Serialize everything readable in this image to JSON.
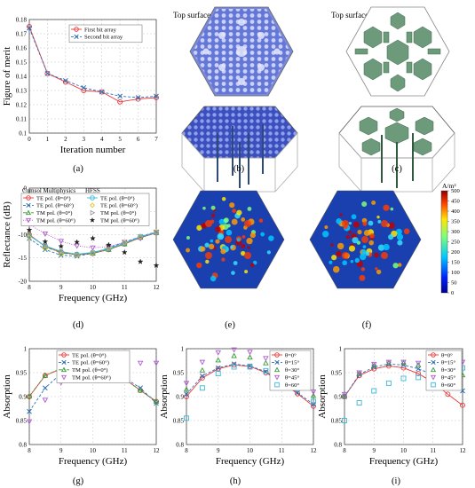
{
  "panel_labels": [
    "(a)",
    "(b)",
    "(c)",
    "(d)",
    "(e)",
    "(f)",
    "(g)",
    "(h)",
    "(i)"
  ],
  "surface_label": "Top surface:",
  "colorbar": {
    "unit": "A/m²",
    "ticks": [
      0,
      50,
      100,
      150,
      200,
      250,
      300,
      350,
      400,
      450,
      500
    ]
  },
  "legend_groups": {
    "d_left": "Comsol Multiphysics",
    "d_right": "HFSS"
  },
  "chart_data": [
    {
      "id": "a",
      "type": "line",
      "xlabel": "Iteration number",
      "ylabel": "Figure of merit",
      "xlim": [
        0,
        7
      ],
      "ylim": [
        0.1,
        0.18
      ],
      "xticks": [
        0,
        1,
        2,
        3,
        4,
        5,
        6,
        7
      ],
      "yticks": [
        0.1,
        0.11,
        0.12,
        0.13,
        0.14,
        0.15,
        0.16,
        0.17,
        0.18
      ],
      "x": [
        0,
        1,
        2,
        3,
        4,
        5,
        6,
        7
      ],
      "series": [
        {
          "name": "First bit array",
          "color": "#e8373a",
          "marker": "circle",
          "dash": "solid",
          "values": [
            0.175,
            0.142,
            0.136,
            0.13,
            0.129,
            0.122,
            0.124,
            0.125
          ]
        },
        {
          "name": "Second bit array",
          "color": "#2c6fb8",
          "marker": "x",
          "dash": "dashed",
          "values": [
            0.174,
            0.142,
            0.137,
            0.132,
            0.129,
            0.126,
            0.125,
            0.126
          ]
        }
      ]
    },
    {
      "id": "d",
      "type": "line",
      "xlabel": "Frequency (GHz)",
      "ylabel": "Reflectance (dB)",
      "xlim": [
        8,
        12
      ],
      "ylim": [
        -20,
        0
      ],
      "xticks": [
        8,
        9,
        10,
        11,
        12
      ],
      "yticks": [
        -20,
        -15,
        -10,
        -5,
        0
      ],
      "x": [
        8,
        8.5,
        9,
        9.5,
        10,
        10.5,
        11,
        11.5,
        12
      ],
      "series": [
        {
          "name": "TE pol. (θ=0°)",
          "color": "#e8373a",
          "marker": "circle",
          "dash": "solid",
          "values": [
            -10.0,
            -12.5,
            -13.8,
            -14.3,
            -14.0,
            -13.2,
            -12.0,
            -10.6,
            -9.6
          ]
        },
        {
          "name": "TE pol. (θ=60°)",
          "color": "#2c6fb8",
          "marker": "x",
          "dash": "dashed",
          "values": [
            -10.8,
            -13.2,
            -14.4,
            -14.6,
            -14.0,
            -12.8,
            -11.6,
            -10.4,
            -9.4
          ]
        },
        {
          "name": "TM pol. (θ=0°)",
          "color": "#3a9a3a",
          "marker": "triangle",
          "dash": "dashdot",
          "values": [
            -10.0,
            -12.6,
            -13.9,
            -14.3,
            -14.0,
            -13.2,
            -12.0,
            -10.6,
            -9.6
          ]
        },
        {
          "name": "TM pol. (θ=60°)",
          "color": "#b05ad0",
          "marker": "triangle-down",
          "dash": "dotted",
          "values": [
            -7.8,
            -9.8,
            -11.4,
            -12.4,
            -12.8,
            -12.6,
            -11.6,
            -10.8,
            -9.5
          ]
        },
        {
          "name": "TE pol. (θ=0°)",
          "color": "#39b8d8",
          "marker": "circle",
          "dash": "solid",
          "values": [
            -10.2,
            -12.4,
            -13.6,
            -14.2,
            -13.8,
            -13.0,
            -11.8,
            -10.4,
            -9.5
          ]
        },
        {
          "name": "TE pol. (θ=60°)",
          "color": "#e0c52a",
          "marker": "diamond",
          "dash": "none",
          "values": [
            -10.6,
            -13.0,
            -14.2,
            -14.4,
            -13.9,
            -12.9,
            -11.7,
            -10.5,
            -9.4
          ]
        },
        {
          "name": "TM pol. (θ=0°)",
          "color": "#9a9a9a",
          "marker": "triangle-right",
          "dash": "none",
          "values": [
            -10.1,
            -12.5,
            -13.8,
            -14.3,
            -13.9,
            -13.1,
            -11.9,
            -10.5,
            -9.5
          ]
        },
        {
          "name": "TM pol. (θ=60°)",
          "color": "#222222",
          "marker": "star",
          "dash": "none",
          "values": [
            -9.0,
            -11.5,
            -12.5,
            -11.6,
            -10.8,
            -12.2,
            -13.8,
            -15.8,
            -16.6
          ]
        }
      ]
    },
    {
      "id": "g",
      "type": "line",
      "xlabel": "Frequency (GHz)",
      "ylabel": "Absorption",
      "xlim": [
        8,
        12
      ],
      "ylim": [
        0.8,
        1
      ],
      "xticks": [
        8,
        9,
        10,
        11,
        12
      ],
      "yticks": [
        0.8,
        0.85,
        0.9,
        0.95,
        1
      ],
      "x": [
        8,
        8.5,
        9,
        9.5,
        10,
        10.5,
        11,
        11.5,
        12
      ],
      "series": [
        {
          "name": "TE pol. (θ=0°)",
          "color": "#e8373a",
          "marker": "circle",
          "dash": "solid",
          "values": [
            0.9,
            0.944,
            0.958,
            0.963,
            0.96,
            0.952,
            0.937,
            0.913,
            0.89
          ]
        },
        {
          "name": "TE pol. (θ=60°)",
          "color": "#2c6fb8",
          "marker": "x",
          "dash": "dashed",
          "values": [
            0.869,
            0.918,
            0.948,
            0.96,
            0.962,
            0.953,
            0.939,
            0.918,
            0.886
          ]
        },
        {
          "name": "TM pol. (θ=0°)",
          "color": "#3a9a3a",
          "marker": "triangle",
          "dash": "dashdot",
          "values": [
            0.901,
            0.944,
            0.959,
            0.963,
            0.96,
            0.952,
            0.937,
            0.913,
            0.89
          ]
        },
        {
          "name": "TM pol. (θ=60°)",
          "color": "#b05ad0",
          "marker": "triangle-down",
          "dash": "none",
          "values": [
            0.848,
            0.893,
            0.929,
            0.947,
            0.952,
            0.949,
            0.958,
            0.97,
            0.97
          ]
        }
      ]
    },
    {
      "id": "h",
      "type": "line",
      "xlabel": "Frequency (GHz)",
      "ylabel": "Absorption",
      "xlim": [
        8,
        12
      ],
      "ylim": [
        0.8,
        1
      ],
      "xticks": [
        8,
        9,
        10,
        11,
        12
      ],
      "yticks": [
        0.8,
        0.85,
        0.9,
        0.95,
        1
      ],
      "x": [
        8,
        8.5,
        9,
        9.5,
        10,
        10.5,
        11,
        11.5,
        12
      ],
      "series": [
        {
          "name": "θ=0°",
          "color": "#e8373a",
          "marker": "circle",
          "dash": "solid",
          "values": [
            0.9,
            0.939,
            0.958,
            0.966,
            0.963,
            0.95,
            0.93,
            0.906,
            0.88
          ]
        },
        {
          "name": "θ=15°",
          "color": "#2c6fb8",
          "marker": "x",
          "dash": "dashed",
          "values": [
            0.905,
            0.943,
            0.96,
            0.968,
            0.964,
            0.952,
            0.932,
            0.908,
            0.884
          ]
        },
        {
          "name": "θ=30°",
          "color": "#3a9a3a",
          "marker": "triangle",
          "dash": "none",
          "values": [
            0.915,
            0.955,
            0.976,
            0.985,
            0.982,
            0.97,
            0.952,
            0.928,
            0.902
          ]
        },
        {
          "name": "θ=45°",
          "color": "#b05ad0",
          "marker": "triangle-down",
          "dash": "none",
          "values": [
            0.928,
            0.972,
            0.992,
            0.998,
            0.993,
            0.98,
            0.961,
            0.938,
            0.91
          ]
        },
        {
          "name": "θ=60°",
          "color": "#39b8d8",
          "marker": "square",
          "dash": "none",
          "values": [
            0.855,
            0.918,
            0.948,
            0.962,
            0.962,
            0.954,
            0.938,
            0.916,
            0.89
          ]
        }
      ]
    },
    {
      "id": "i",
      "type": "line",
      "xlabel": "Frequency (GHz)",
      "ylabel": "Absorption",
      "xlim": [
        8,
        12
      ],
      "ylim": [
        0.8,
        1
      ],
      "xticks": [
        8,
        9,
        10,
        11,
        12
      ],
      "yticks": [
        0.8,
        0.85,
        0.9,
        0.95,
        1
      ],
      "x": [
        8,
        8.5,
        9,
        9.5,
        10,
        10.5,
        11,
        11.5,
        12
      ],
      "series": [
        {
          "name": "θ=0°",
          "color": "#e8373a",
          "marker": "circle",
          "dash": "solid",
          "values": [
            0.9,
            0.944,
            0.958,
            0.964,
            0.96,
            0.948,
            0.93,
            0.905,
            0.882
          ]
        },
        {
          "name": "θ=15°",
          "color": "#2c6fb8",
          "marker": "x",
          "dash": "dashed",
          "values": [
            0.9,
            0.946,
            0.962,
            0.968,
            0.966,
            0.958,
            0.946,
            0.93,
            0.912
          ]
        },
        {
          "name": "θ=30°",
          "color": "#3a9a3a",
          "marker": "triangle",
          "dash": "none",
          "values": [
            0.902,
            0.948,
            0.965,
            0.97,
            0.97,
            0.966,
            0.96,
            0.952,
            0.945
          ]
        },
        {
          "name": "θ=45°",
          "color": "#b05ad0",
          "marker": "triangle-down",
          "dash": "none",
          "values": [
            0.905,
            0.95,
            0.968,
            0.972,
            0.972,
            0.97,
            0.968,
            0.97,
            0.972
          ]
        },
        {
          "name": "θ=60°",
          "color": "#39b8d8",
          "marker": "square",
          "dash": "none",
          "values": [
            0.85,
            0.887,
            0.912,
            0.928,
            0.938,
            0.94,
            0.946,
            0.955,
            0.96
          ]
        }
      ]
    }
  ]
}
